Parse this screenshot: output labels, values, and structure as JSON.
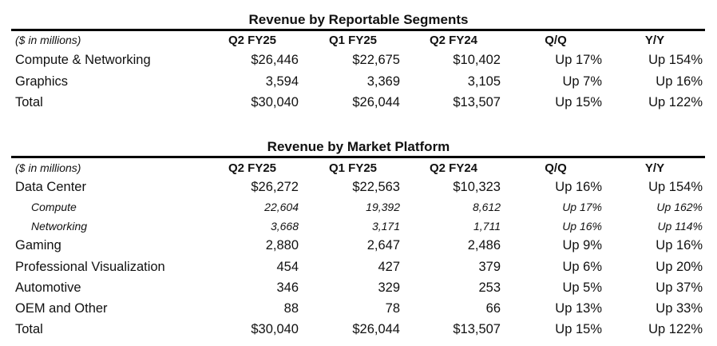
{
  "segments": {
    "title": "Revenue by Reportable Segments",
    "units": "($ in millions)",
    "columns": [
      "Q2 FY25",
      "Q1 FY25",
      "Q2 FY24",
      "Q/Q",
      "Y/Y"
    ],
    "rows": [
      {
        "label": "Compute & Networking",
        "values": [
          "$26,446",
          "$22,675",
          "$10,402",
          "Up 17%",
          "Up 154%"
        ]
      },
      {
        "label": "Graphics",
        "values": [
          "3,594",
          "3,369",
          "3,105",
          "Up 7%",
          "Up 16%"
        ]
      },
      {
        "label": "Total",
        "values": [
          "$30,040",
          "$26,044",
          "$13,507",
          "Up 15%",
          "Up 122%"
        ]
      }
    ]
  },
  "platforms": {
    "title": "Revenue by Market Platform",
    "units": "($ in millions)",
    "columns": [
      "Q2 FY25",
      "Q1 FY25",
      "Q2 FY24",
      "Q/Q",
      "Y/Y"
    ],
    "rows": [
      {
        "label": "Data Center",
        "values": [
          "$26,272",
          "$22,563",
          "$10,323",
          "Up 16%",
          "Up 154%"
        ]
      },
      {
        "label": "Compute",
        "values": [
          "22,604",
          "19,392",
          "8,612",
          "Up 17%",
          "Up 162%"
        ],
        "sub": true
      },
      {
        "label": "Networking",
        "values": [
          "3,668",
          "3,171",
          "1,711",
          "Up 16%",
          "Up 114%"
        ],
        "sub": true
      },
      {
        "label": "Gaming",
        "values": [
          "2,880",
          "2,647",
          "2,486",
          "Up 9%",
          "Up 16%"
        ]
      },
      {
        "label": "Professional Visualization",
        "values": [
          "454",
          "427",
          "379",
          "Up 6%",
          "Up 20%"
        ]
      },
      {
        "label": "Automotive",
        "values": [
          "346",
          "329",
          "253",
          "Up 5%",
          "Up 37%"
        ]
      },
      {
        "label": "OEM and Other",
        "values": [
          "88",
          "78",
          "66",
          "Up 13%",
          "Up 33%"
        ]
      },
      {
        "label": "Total",
        "values": [
          "$30,040",
          "$26,044",
          "$13,507",
          "Up 15%",
          "Up 122%"
        ]
      }
    ]
  }
}
